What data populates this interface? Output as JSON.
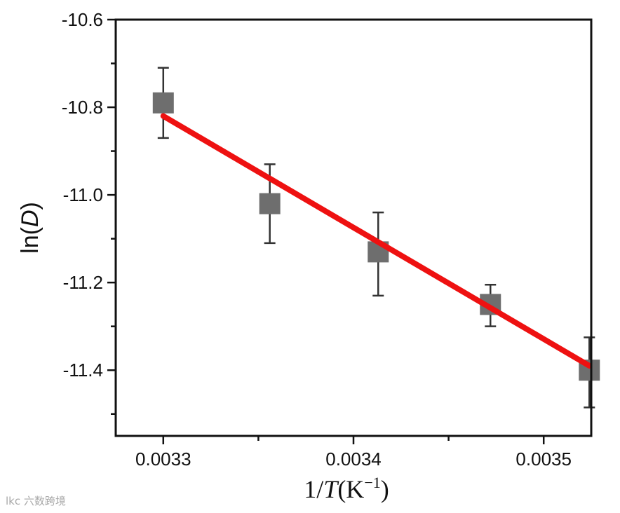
{
  "chart_data": {
    "type": "scatter",
    "xlabel": "1/T(K⁻¹)",
    "xlabel_parts": {
      "prefix": "1/",
      "var": "T",
      "open": "(K",
      "sup": "−1",
      "close": ")"
    },
    "ylabel": "ln(D)",
    "ylabel_parts": {
      "prefix": "ln(",
      "var": "D",
      "close": ")"
    },
    "xlim": [
      0.003275,
      0.003525
    ],
    "ylim": [
      -11.55,
      -10.6
    ],
    "x_ticks": [
      0.0033,
      0.0034,
      0.0035
    ],
    "x_tick_labels": [
      "0.0033",
      "0.0034",
      "0.0035"
    ],
    "x_minor_ticks": [
      0.00335,
      0.00345
    ],
    "y_ticks": [
      -10.6,
      -10.8,
      -11.0,
      -11.2,
      -11.4
    ],
    "y_tick_labels": [
      "-10.6",
      "-10.8",
      "-11.0",
      "-11.2",
      "-11.4"
    ],
    "y_minor_ticks": [
      -10.7,
      -10.9,
      -11.1,
      -11.3,
      -11.5
    ],
    "grid": false,
    "series": [
      {
        "type": "scatter",
        "marker": "square",
        "color": "#6e6e6e",
        "points": [
          {
            "x": 0.0033,
            "y": -10.79,
            "err_low": 0.08,
            "err_high": 0.08
          },
          {
            "x": 0.003356,
            "y": -11.02,
            "err_low": 0.09,
            "err_high": 0.09
          },
          {
            "x": 0.003413,
            "y": -11.13,
            "err_low": 0.1,
            "err_high": 0.09
          },
          {
            "x": 0.003472,
            "y": -11.25,
            "err_low": 0.05,
            "err_high": 0.045
          },
          {
            "x": 0.003524,
            "y": -11.4,
            "err_low": 0.085,
            "err_high": 0.075
          }
        ]
      },
      {
        "type": "line",
        "role": "linear-fit",
        "color": "#ee1111",
        "x": [
          0.0033,
          0.003524
        ],
        "y": [
          -10.82,
          -11.39
        ]
      }
    ]
  },
  "watermark": {
    "text": "六数跨境",
    "logo_text": "lkc"
  }
}
